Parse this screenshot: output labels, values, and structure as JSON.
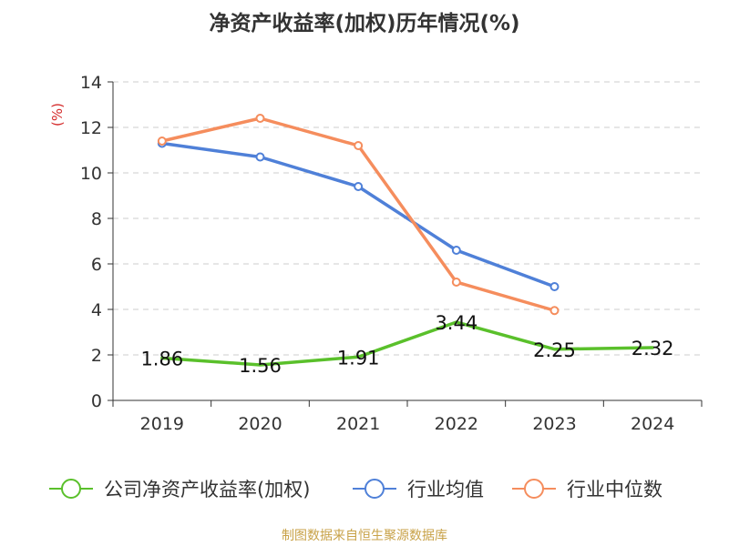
{
  "chart_data": {
    "type": "line",
    "title": "净资产收益率(加权)历年情况(%)",
    "ylabel": "(%)",
    "ylim": [
      0,
      14
    ],
    "yticks": [
      0,
      2,
      4,
      6,
      8,
      10,
      12,
      14
    ],
    "categories": [
      "2019",
      "2020",
      "2021",
      "2022",
      "2023",
      "2024"
    ],
    "grid": true,
    "legend_position": "bottom",
    "series": [
      {
        "name": "公司净资产收益率(加权)",
        "color": "#5ac02b",
        "values": [
          1.86,
          1.56,
          1.91,
          3.44,
          2.25,
          2.32
        ],
        "labels": [
          "1.86",
          "1.56",
          "1.91",
          "3.44",
          "2.25",
          "2.32"
        ],
        "show_markers": false
      },
      {
        "name": "行业均值",
        "color": "#4f80d8",
        "values": [
          11.3,
          10.7,
          9.4,
          6.6,
          5.0,
          null
        ],
        "show_markers": true
      },
      {
        "name": "行业中位数",
        "color": "#f58d5d",
        "values": [
          11.4,
          12.4,
          11.2,
          5.2,
          3.95,
          null
        ],
        "show_markers": true
      }
    ]
  },
  "footer": {
    "source": "制图数据来自恒生聚源数据库"
  }
}
